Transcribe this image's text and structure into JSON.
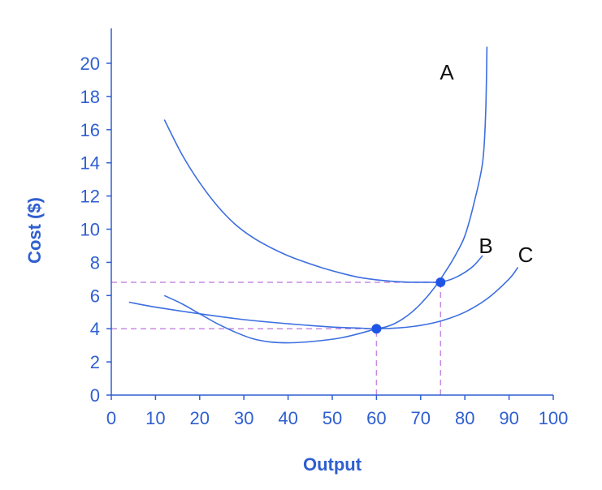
{
  "chart_data": {
    "type": "line",
    "title": "",
    "xlabel": "Output",
    "ylabel": "Cost ($)",
    "xlim": [
      0,
      100
    ],
    "ylim": [
      0,
      22
    ],
    "x_ticks": [
      0,
      10,
      20,
      30,
      40,
      50,
      60,
      70,
      80,
      90,
      100
    ],
    "y_ticks": [
      0,
      2,
      4,
      6,
      8,
      10,
      12,
      14,
      16,
      18,
      20
    ],
    "grid": false,
    "legend": "none",
    "series": [
      {
        "name": "A",
        "x": [
          85,
          84.7,
          84,
          82,
          80,
          78,
          76,
          74,
          72,
          70,
          68,
          66,
          64,
          62,
          60,
          56,
          52,
          48,
          44,
          40,
          36,
          32,
          28,
          24,
          20,
          16,
          12
        ],
        "y": [
          21,
          17,
          14,
          11.5,
          9.6,
          8.5,
          7.6,
          6.8,
          6.1,
          5.5,
          5.0,
          4.6,
          4.3,
          4.1,
          4.0,
          3.7,
          3.45,
          3.3,
          3.2,
          3.15,
          3.2,
          3.4,
          3.8,
          4.3,
          4.9,
          5.5,
          6.0
        ]
      },
      {
        "name": "B",
        "x": [
          12,
          16,
          20,
          24,
          28,
          32,
          36,
          40,
          44,
          48,
          52,
          56,
          60,
          64,
          68,
          72,
          74,
          76,
          78,
          80,
          82,
          84
        ],
        "y": [
          16.6,
          14.5,
          12.8,
          11.4,
          10.3,
          9.5,
          8.9,
          8.4,
          8.0,
          7.65,
          7.35,
          7.1,
          6.95,
          6.85,
          6.8,
          6.8,
          6.8,
          6.9,
          7.1,
          7.4,
          7.8,
          8.4
        ]
      },
      {
        "name": "C",
        "x": [
          4,
          10,
          20,
          30,
          40,
          50,
          55,
          60,
          65,
          70,
          75,
          80,
          85,
          90,
          92
        ],
        "y": [
          5.6,
          5.3,
          4.9,
          4.55,
          4.3,
          4.1,
          4.05,
          4.0,
          4.05,
          4.2,
          4.5,
          5.0,
          5.8,
          7.0,
          7.7
        ]
      }
    ],
    "highlight_points": [
      {
        "x": 60,
        "y": 4.0
      },
      {
        "x": 74.5,
        "y": 6.8
      }
    ],
    "reference_lines": [
      {
        "orientation": "horizontal",
        "y": 6.8,
        "x_from": 0,
        "x_to": 74.5
      },
      {
        "orientation": "vertical",
        "x": 74.5,
        "y_from": 0,
        "y_to": 6.8
      },
      {
        "orientation": "horizontal",
        "y": 4.0,
        "x_from": 0,
        "x_to": 60
      },
      {
        "orientation": "vertical",
        "x": 60,
        "y_from": 0,
        "y_to": 4.0
      }
    ],
    "colors": {
      "axis": "#2f5fd0",
      "curve": "#3d6fe0",
      "point": "#1f55e6",
      "reference": "#c58be0",
      "label": "#111111"
    }
  }
}
